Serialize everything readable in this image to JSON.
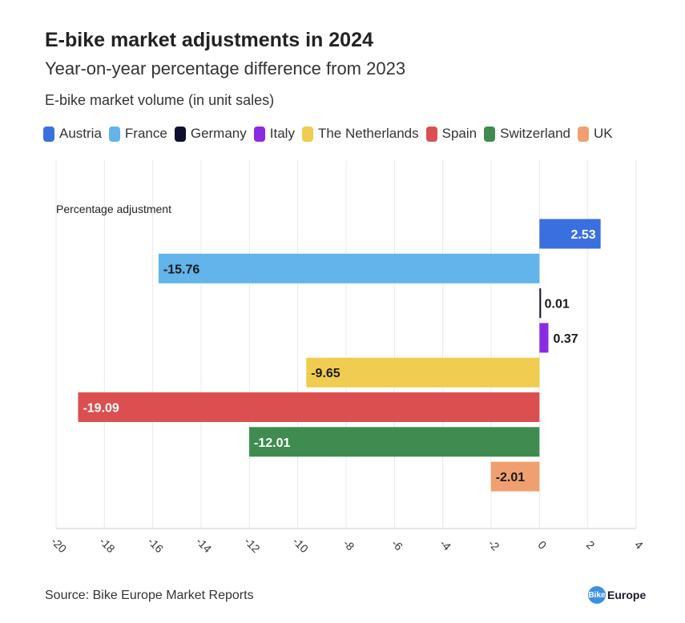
{
  "header": {
    "title": "E-bike market adjustments in 2024",
    "subtitle": "Year-on-year percentage difference from 2023",
    "caption": "E-bike market volume (in unit sales)"
  },
  "chart_data": {
    "type": "bar",
    "orientation": "horizontal",
    "title": "E-bike market adjustments in 2024",
    "ylabel": "Percentage adjustment",
    "xlim": [
      -20,
      4
    ],
    "xticks": [
      -20,
      -18,
      -16,
      -14,
      -12,
      -10,
      -8,
      -6,
      -4,
      -2,
      0,
      2,
      4
    ],
    "categories": [
      "Austria",
      "France",
      "Germany",
      "Italy",
      "The Netherlands",
      "Spain",
      "Switzerland",
      "UK"
    ],
    "values": [
      2.53,
      -15.76,
      0.01,
      0.37,
      -9.65,
      -19.09,
      -12.01,
      -2.01
    ],
    "labels": [
      "2.53",
      "-15.76",
      "0.01",
      "0.37",
      "-9.65",
      "-19.09",
      "-12.01",
      "-2.01"
    ],
    "colors": [
      "#3a6fe0",
      "#62b4ea",
      "#0f0f2e",
      "#8a2be2",
      "#f0cc50",
      "#dc4f50",
      "#3f8b50",
      "#f0a070"
    ],
    "legend_position": "top-left",
    "grid": true
  },
  "footer": {
    "source": "Source: Bike Europe Market Reports",
    "logo_part1": "Bike",
    "logo_part2": "Europe"
  }
}
